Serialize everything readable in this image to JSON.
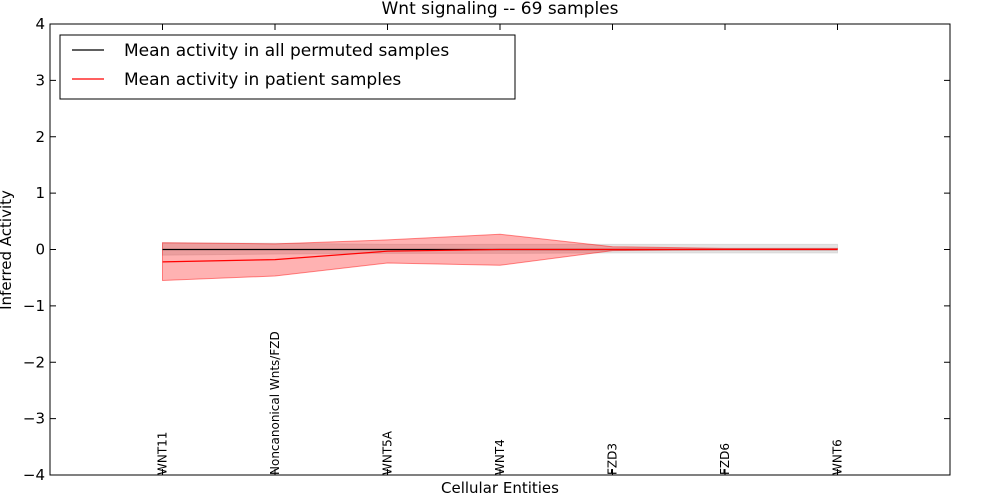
{
  "chart_data": {
    "type": "line",
    "title": "Wnt signaling -- 69 samples",
    "xlabel": "Cellular Entities",
    "ylabel": "Inferred Activity",
    "ylim": [
      -4,
      4
    ],
    "xlim": [
      -1,
      7
    ],
    "yticks": [
      4,
      3,
      2,
      1,
      0,
      -1,
      -2,
      -3,
      -4
    ],
    "ytick_labels": [
      "4",
      "3",
      "2",
      "1",
      "0",
      "−1",
      "−2",
      "−3",
      "−4"
    ],
    "categories": [
      "WNT11",
      "Noncanonical Wnts/FZD",
      "WNT5A",
      "WNT4",
      "FZD3",
      "FZD6",
      "WNT6"
    ],
    "grid": false,
    "legend_position": "top-left",
    "series": [
      {
        "name": "Mean activity in all permuted samples",
        "color": "#000000",
        "band_color": "#cccccc",
        "values": [
          0.0,
          0.0,
          0.0,
          0.0,
          0.0,
          0.0,
          0.0
        ],
        "lower": [
          -0.1,
          -0.08,
          -0.07,
          -0.07,
          -0.06,
          -0.06,
          -0.06
        ],
        "upper": [
          0.12,
          0.11,
          0.09,
          0.09,
          0.09,
          0.09,
          0.09
        ]
      },
      {
        "name": "Mean activity in patient samples",
        "color": "#ff0000",
        "band_color": "#ff0000",
        "values": [
          -0.22,
          -0.18,
          -0.03,
          0.0,
          0.0,
          0.0,
          0.0
        ],
        "lower": [
          -0.55,
          -0.47,
          -0.24,
          -0.28,
          -0.02,
          0.0,
          0.0
        ],
        "upper": [
          0.12,
          0.1,
          0.17,
          0.27,
          0.05,
          0.02,
          0.02
        ]
      }
    ]
  }
}
